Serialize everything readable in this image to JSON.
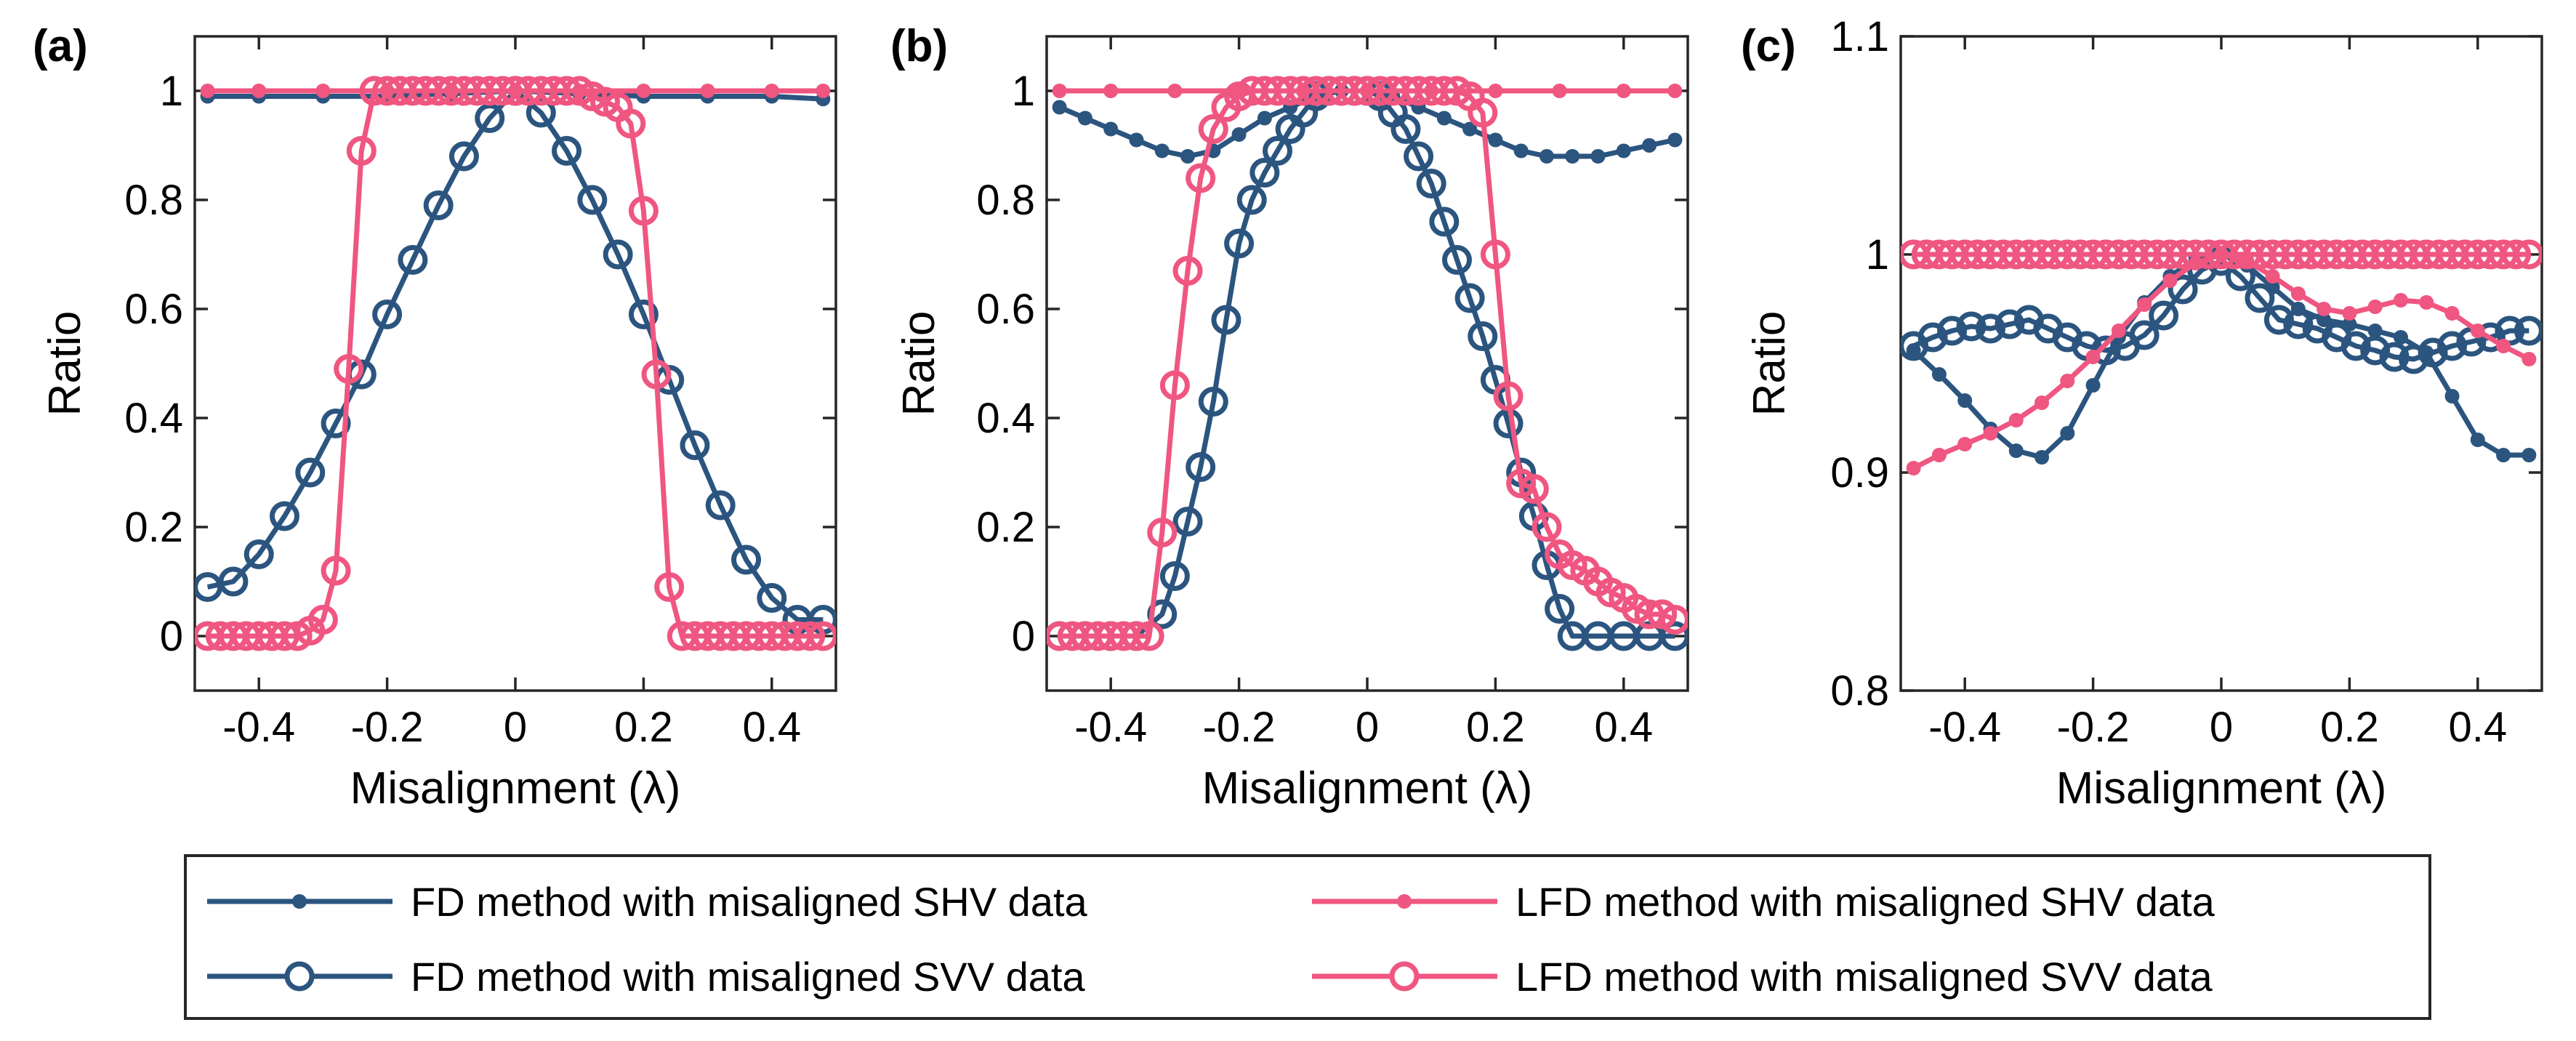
{
  "colors": {
    "fd": "#2b557f",
    "lfd": "#ef5680"
  },
  "legend": {
    "items": [
      {
        "label": "FD method with misaligned SHV data",
        "method": "fd",
        "marker": "dot"
      },
      {
        "label": "FD method with misaligned SVV data",
        "method": "fd",
        "marker": "circle"
      },
      {
        "label": "LFD method with misaligned SHV data",
        "method": "lfd",
        "marker": "dot"
      },
      {
        "label": "LFD method with misaligned SVV data",
        "method": "lfd",
        "marker": "circle"
      }
    ]
  },
  "chart_data": [
    {
      "panel": "(a)",
      "type": "line",
      "xlabel": "Misalignment (λ)",
      "ylabel": "Ratio",
      "xlim": [
        -0.5,
        0.5
      ],
      "ylim": [
        -0.1,
        1.1
      ],
      "xticks": [
        -0.4,
        -0.2,
        0,
        0.2,
        0.4
      ],
      "xticklabels": [
        "-0.4",
        "-0.2",
        "0",
        "0.2",
        "0.4"
      ],
      "yticks": [
        0,
        0.2,
        0.4,
        0.6,
        0.8,
        1
      ],
      "yticklabels": [
        "0",
        "0.2",
        "0.4",
        "0.6",
        "0.8",
        "1"
      ],
      "series": [
        {
          "name": "FD method with misaligned SHV data",
          "method": "fd",
          "marker": "dot",
          "x": [
            -0.48,
            -0.4,
            -0.3,
            -0.2,
            -0.1,
            0,
            0.1,
            0.2,
            0.3,
            0.4,
            0.48
          ],
          "y": [
            0.99,
            0.99,
            0.99,
            0.99,
            0.995,
            1,
            0.995,
            0.99,
            0.99,
            0.99,
            0.985
          ]
        },
        {
          "name": "FD method with misaligned SVV data",
          "method": "fd",
          "marker": "circle",
          "x": [
            -0.48,
            -0.44,
            -0.4,
            -0.36,
            -0.32,
            -0.28,
            -0.24,
            -0.2,
            -0.16,
            -0.12,
            -0.08,
            -0.04,
            0,
            0.04,
            0.08,
            0.12,
            0.16,
            0.2,
            0.24,
            0.28,
            0.32,
            0.36,
            0.4,
            0.44,
            0.48
          ],
          "y": [
            0.09,
            0.1,
            0.15,
            0.22,
            0.3,
            0.39,
            0.48,
            0.59,
            0.69,
            0.79,
            0.88,
            0.95,
            1.0,
            0.96,
            0.89,
            0.8,
            0.7,
            0.59,
            0.47,
            0.35,
            0.24,
            0.14,
            0.07,
            0.03,
            0.03
          ]
        },
        {
          "name": "LFD method with misaligned SHV data",
          "method": "lfd",
          "marker": "dot",
          "x": [
            -0.48,
            -0.4,
            -0.3,
            -0.2,
            -0.1,
            0,
            0.1,
            0.2,
            0.3,
            0.4,
            0.48
          ],
          "y": [
            1,
            1,
            1,
            1,
            1,
            1,
            1,
            1,
            1,
            1,
            1
          ]
        },
        {
          "name": "LFD method with misaligned SVV data",
          "method": "lfd",
          "marker": "circle",
          "x": [
            -0.48,
            -0.46,
            -0.44,
            -0.42,
            -0.4,
            -0.38,
            -0.36,
            -0.34,
            -0.32,
            -0.3,
            -0.28,
            -0.26,
            -0.24,
            -0.22,
            -0.2,
            -0.18,
            -0.16,
            -0.14,
            -0.12,
            -0.1,
            -0.08,
            -0.06,
            -0.04,
            -0.02,
            0,
            0.02,
            0.04,
            0.06,
            0.08,
            0.1,
            0.12,
            0.14,
            0.16,
            0.18,
            0.2,
            0.22,
            0.24,
            0.26,
            0.28,
            0.3,
            0.32,
            0.34,
            0.36,
            0.38,
            0.4,
            0.42,
            0.44,
            0.46,
            0.48
          ],
          "y": [
            0,
            0,
            0,
            0,
            0,
            0,
            0,
            0,
            0.01,
            0.03,
            0.12,
            0.49,
            0.89,
            1.0,
            1.0,
            1.0,
            1.0,
            1.0,
            1.0,
            1.0,
            1.0,
            1.0,
            1.0,
            1.0,
            1.0,
            1.0,
            1.0,
            1.0,
            1.0,
            1.0,
            0.99,
            0.98,
            0.97,
            0.94,
            0.78,
            0.48,
            0.09,
            0,
            0,
            0,
            0,
            0,
            0,
            0,
            0,
            0,
            0,
            0,
            0
          ]
        }
      ]
    },
    {
      "panel": "(b)",
      "type": "line",
      "xlabel": "Misalignment (λ)",
      "ylabel": "Ratio",
      "xlim": [
        -0.5,
        0.5
      ],
      "ylim": [
        -0.1,
        1.1
      ],
      "xticks": [
        -0.4,
        -0.2,
        0,
        0.2,
        0.4
      ],
      "xticklabels": [
        "-0.4",
        "-0.2",
        "0",
        "0.2",
        "0.4"
      ],
      "yticks": [
        0,
        0.2,
        0.4,
        0.6,
        0.8,
        1
      ],
      "yticklabels": [
        "0",
        "0.2",
        "0.4",
        "0.6",
        "0.8",
        "1"
      ],
      "series": [
        {
          "name": "FD method with misaligned SHV data",
          "method": "fd",
          "marker": "dot",
          "x": [
            -0.48,
            -0.44,
            -0.4,
            -0.36,
            -0.32,
            -0.28,
            -0.24,
            -0.2,
            -0.16,
            -0.12,
            -0.08,
            -0.04,
            0,
            0.04,
            0.08,
            0.12,
            0.16,
            0.2,
            0.24,
            0.28,
            0.32,
            0.36,
            0.4,
            0.44,
            0.48
          ],
          "y": [
            0.97,
            0.95,
            0.93,
            0.91,
            0.89,
            0.88,
            0.89,
            0.92,
            0.95,
            0.97,
            0.99,
            1.0,
            1.0,
            0.99,
            0.97,
            0.95,
            0.93,
            0.91,
            0.89,
            0.88,
            0.88,
            0.88,
            0.89,
            0.9,
            0.91
          ]
        },
        {
          "name": "FD method with misaligned SVV data",
          "method": "fd",
          "marker": "circle",
          "x": [
            -0.48,
            -0.44,
            -0.4,
            -0.36,
            -0.32,
            -0.3,
            -0.28,
            -0.26,
            -0.24,
            -0.22,
            -0.2,
            -0.18,
            -0.16,
            -0.14,
            -0.12,
            -0.1,
            -0.08,
            -0.06,
            -0.04,
            -0.02,
            0,
            0.02,
            0.04,
            0.06,
            0.08,
            0.1,
            0.12,
            0.14,
            0.16,
            0.18,
            0.2,
            0.22,
            0.24,
            0.26,
            0.28,
            0.3,
            0.32,
            0.36,
            0.4,
            0.44,
            0.48
          ],
          "y": [
            0,
            0,
            0,
            0,
            0.04,
            0.11,
            0.21,
            0.31,
            0.43,
            0.58,
            0.72,
            0.8,
            0.85,
            0.89,
            0.93,
            0.96,
            0.99,
            1.0,
            1.0,
            1.0,
            1.0,
            0.99,
            0.96,
            0.93,
            0.88,
            0.83,
            0.76,
            0.69,
            0.62,
            0.55,
            0.47,
            0.39,
            0.3,
            0.22,
            0.13,
            0.05,
            0,
            0,
            0,
            0,
            0
          ]
        },
        {
          "name": "LFD method with misaligned SHV data",
          "method": "lfd",
          "marker": "dot",
          "x": [
            -0.48,
            -0.4,
            -0.3,
            -0.2,
            -0.1,
            0,
            0.1,
            0.2,
            0.3,
            0.4,
            0.48
          ],
          "y": [
            1,
            1,
            1,
            1,
            1,
            1,
            1,
            1,
            1,
            1,
            1
          ]
        },
        {
          "name": "LFD method with misaligned SVV data",
          "method": "lfd",
          "marker": "circle",
          "x": [
            -0.48,
            -0.46,
            -0.44,
            -0.42,
            -0.4,
            -0.38,
            -0.36,
            -0.34,
            -0.32,
            -0.3,
            -0.28,
            -0.26,
            -0.24,
            -0.22,
            -0.2,
            -0.18,
            -0.16,
            -0.14,
            -0.12,
            -0.1,
            -0.08,
            -0.06,
            -0.04,
            -0.02,
            0,
            0.02,
            0.04,
            0.06,
            0.08,
            0.1,
            0.12,
            0.14,
            0.16,
            0.18,
            0.2,
            0.22,
            0.24,
            0.26,
            0.28,
            0.3,
            0.32,
            0.34,
            0.36,
            0.38,
            0.4,
            0.42,
            0.44,
            0.46,
            0.48
          ],
          "y": [
            0,
            0,
            0,
            0,
            0,
            0,
            0,
            0,
            0.19,
            0.46,
            0.67,
            0.84,
            0.93,
            0.97,
            0.99,
            1.0,
            1.0,
            1.0,
            1.0,
            1.0,
            1.0,
            1.0,
            1.0,
            1.0,
            1.0,
            1.0,
            1.0,
            1.0,
            1.0,
            1.0,
            1.0,
            1.0,
            0.99,
            0.96,
            0.7,
            0.44,
            0.28,
            0.27,
            0.2,
            0.15,
            0.13,
            0.12,
            0.1,
            0.08,
            0.07,
            0.05,
            0.04,
            0.04,
            0.03
          ]
        }
      ]
    },
    {
      "panel": "(c)",
      "type": "line",
      "xlabel": "Misalignment (λ)",
      "ylabel": "Ratio",
      "xlim": [
        -0.5,
        0.5
      ],
      "ylim": [
        0.8,
        1.1
      ],
      "xticks": [
        -0.4,
        -0.2,
        0,
        0.2,
        0.4
      ],
      "xticklabels": [
        "-0.4",
        "-0.2",
        "0",
        "0.2",
        "0.4"
      ],
      "yticks": [
        0.8,
        0.9,
        1,
        1.1
      ],
      "yticklabels": [
        "0.8",
        "0.9",
        "1",
        "1.1"
      ],
      "series": [
        {
          "name": "FD method with misaligned SHV data",
          "method": "fd",
          "marker": "dot",
          "x": [
            -0.48,
            -0.44,
            -0.4,
            -0.36,
            -0.32,
            -0.28,
            -0.24,
            -0.2,
            -0.16,
            -0.12,
            -0.08,
            -0.04,
            0,
            0.04,
            0.08,
            0.12,
            0.16,
            0.2,
            0.24,
            0.28,
            0.32,
            0.36,
            0.4,
            0.44,
            0.48
          ],
          "y": [
            0.956,
            0.945,
            0.933,
            0.92,
            0.91,
            0.907,
            0.918,
            0.94,
            0.962,
            0.978,
            0.99,
            0.998,
            1.0,
            0.995,
            0.985,
            0.975,
            0.97,
            0.968,
            0.965,
            0.962,
            0.955,
            0.935,
            0.915,
            0.908,
            0.908
          ]
        },
        {
          "name": "FD method with misaligned SVV data",
          "method": "fd",
          "marker": "circle",
          "x": [
            -0.48,
            -0.45,
            -0.42,
            -0.39,
            -0.36,
            -0.33,
            -0.3,
            -0.27,
            -0.24,
            -0.21,
            -0.18,
            -0.15,
            -0.12,
            -0.09,
            -0.06,
            -0.03,
            0,
            0.03,
            0.06,
            0.09,
            0.12,
            0.15,
            0.18,
            0.21,
            0.24,
            0.27,
            0.3,
            0.33,
            0.36,
            0.39,
            0.42,
            0.45,
            0.48
          ],
          "y": [
            0.958,
            0.962,
            0.965,
            0.967,
            0.966,
            0.968,
            0.97,
            0.966,
            0.962,
            0.958,
            0.956,
            0.958,
            0.963,
            0.972,
            0.984,
            0.993,
            0.997,
            0.99,
            0.98,
            0.97,
            0.968,
            0.966,
            0.962,
            0.958,
            0.956,
            0.953,
            0.952,
            0.955,
            0.958,
            0.96,
            0.962,
            0.965,
            0.965
          ]
        },
        {
          "name": "LFD method with misaligned SHV data",
          "method": "lfd",
          "marker": "dot",
          "x": [
            -0.48,
            -0.44,
            -0.4,
            -0.36,
            -0.32,
            -0.28,
            -0.24,
            -0.2,
            -0.16,
            -0.12,
            -0.08,
            -0.04,
            0,
            0.04,
            0.08,
            0.12,
            0.16,
            0.2,
            0.24,
            0.28,
            0.32,
            0.36,
            0.4,
            0.44,
            0.48
          ],
          "y": [
            0.902,
            0.908,
            0.913,
            0.918,
            0.924,
            0.932,
            0.942,
            0.953,
            0.965,
            0.977,
            0.988,
            0.996,
            1.0,
            0.997,
            0.99,
            0.982,
            0.975,
            0.973,
            0.976,
            0.979,
            0.978,
            0.973,
            0.965,
            0.958,
            0.952
          ]
        },
        {
          "name": "LFD method with misaligned SVV data",
          "method": "lfd",
          "marker": "circle",
          "x": [
            -0.48,
            -0.46,
            -0.44,
            -0.42,
            -0.4,
            -0.38,
            -0.36,
            -0.34,
            -0.32,
            -0.3,
            -0.28,
            -0.26,
            -0.24,
            -0.22,
            -0.2,
            -0.18,
            -0.16,
            -0.14,
            -0.12,
            -0.1,
            -0.08,
            -0.06,
            -0.04,
            -0.02,
            0,
            0.02,
            0.04,
            0.06,
            0.08,
            0.1,
            0.12,
            0.14,
            0.16,
            0.18,
            0.2,
            0.22,
            0.24,
            0.26,
            0.28,
            0.3,
            0.32,
            0.34,
            0.36,
            0.38,
            0.4,
            0.42,
            0.44,
            0.46,
            0.48
          ],
          "y": [
            1,
            1,
            1,
            1,
            1,
            1,
            1,
            1,
            1,
            1,
            1,
            1,
            1,
            1,
            1,
            1,
            1,
            1,
            1,
            1,
            1,
            1,
            1,
            1,
            1,
            1,
            1,
            1,
            1,
            1,
            1,
            1,
            1,
            1,
            1,
            1,
            1,
            1,
            1,
            1,
            1,
            1,
            1,
            1,
            1,
            1,
            1,
            1,
            1
          ]
        }
      ]
    }
  ]
}
